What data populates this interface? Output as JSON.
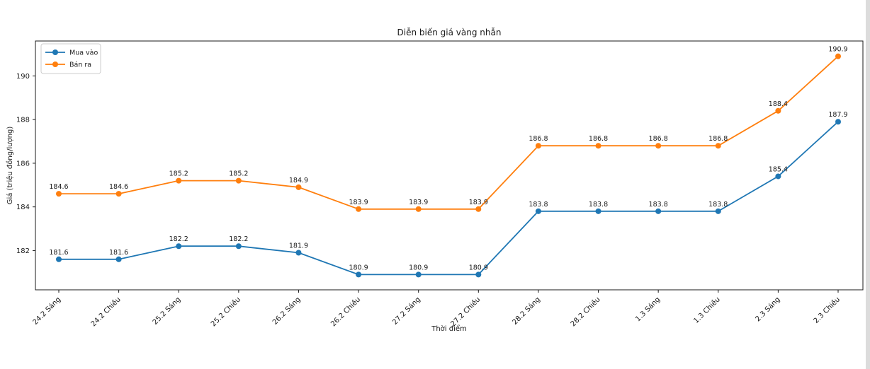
{
  "chart_data": {
    "type": "line",
    "title": "Diễn biến giá vàng nhẫn",
    "xlabel": "Thời điểm",
    "ylabel": "Giá (triệu đồng/lượng)",
    "categories": [
      "24.2 Sáng",
      "24.2 Chiều",
      "25.2 Sáng",
      "25.2 Chiều",
      "26.2 Sáng",
      "26.2 Chiều",
      "27.2 Sáng",
      "27.2 Chiều",
      "28.2 Sáng",
      "28.2 Chiều",
      "1.3 Sáng",
      "1.3 Chiều",
      "2.3 Sáng",
      "2.3 Chiều"
    ],
    "series": [
      {
        "name": "Mua vào",
        "color": "#1f77b4",
        "values": [
          181.6,
          181.6,
          182.2,
          182.2,
          181.9,
          180.9,
          180.9,
          180.9,
          183.8,
          183.8,
          183.8,
          183.8,
          185.4,
          187.9
        ]
      },
      {
        "name": "Bán ra",
        "color": "#ff7f0e",
        "values": [
          184.6,
          184.6,
          185.2,
          185.2,
          184.9,
          183.9,
          183.9,
          183.9,
          186.8,
          186.8,
          186.8,
          186.8,
          188.4,
          190.9
        ]
      }
    ],
    "yticks": [
      182,
      184,
      186,
      188,
      190
    ],
    "ylim": [
      180.2,
      191.6
    ],
    "grid": false,
    "legend_position": "upper-left",
    "data_labels_decimals": 1,
    "axis_color": "#1a1a1a",
    "background_color": "#ffffff",
    "scrollbar_color": "#dcdcdc"
  }
}
